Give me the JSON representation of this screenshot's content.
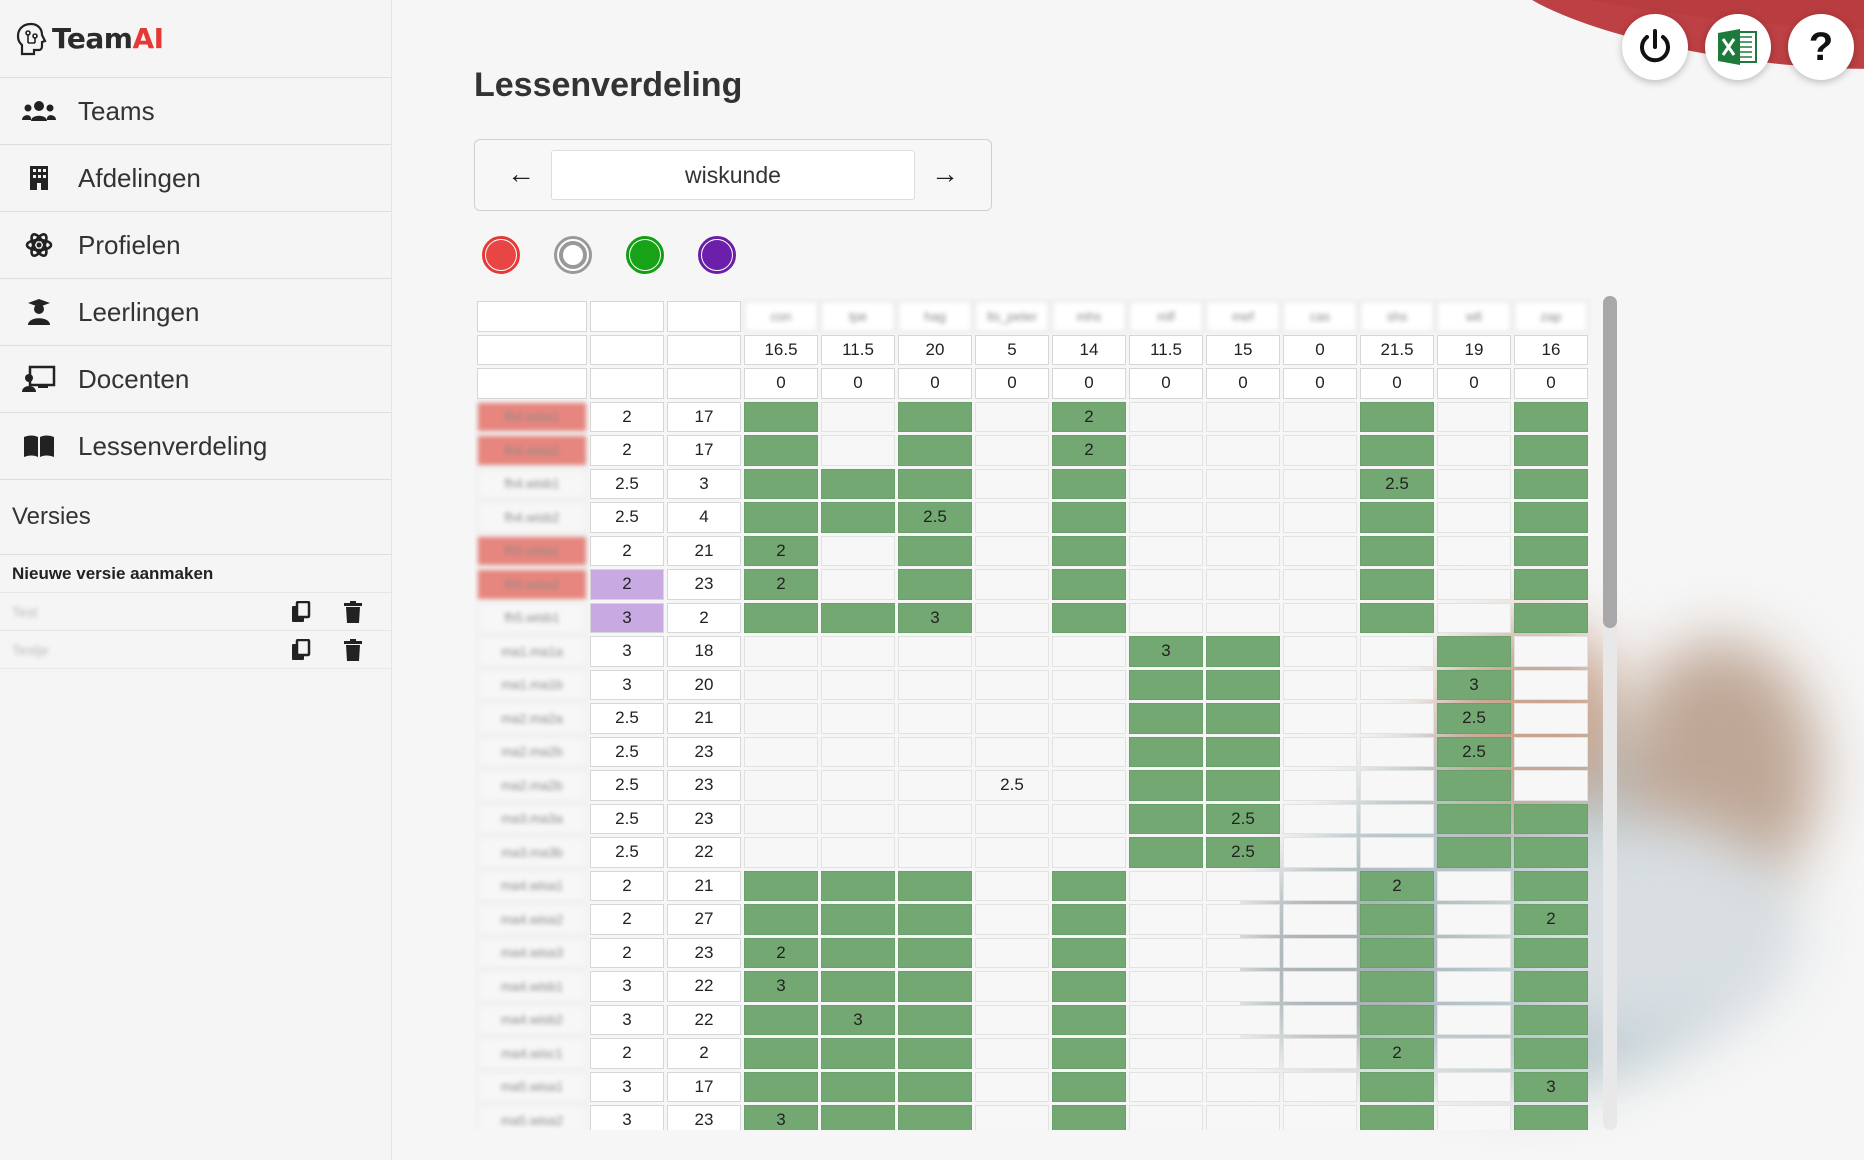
{
  "brand": {
    "name_main": "Team",
    "name_accent": "AI"
  },
  "nav": [
    {
      "label": "Teams",
      "icon": "users-icon"
    },
    {
      "label": "Afdelingen",
      "icon": "building-icon"
    },
    {
      "label": "Profielen",
      "icon": "atom-icon"
    },
    {
      "label": "Leerlingen",
      "icon": "graduate-icon"
    },
    {
      "label": "Docenten",
      "icon": "teacher-icon"
    },
    {
      "label": "Lessenverdeling",
      "icon": "book-icon"
    }
  ],
  "versions": {
    "heading": "Versies",
    "new_label": "Nieuwe versie aanmaken",
    "items": [
      {
        "name": "Test"
      },
      {
        "name": "Testje"
      }
    ]
  },
  "page": {
    "title": "Lessenverdeling"
  },
  "subject_selector": {
    "prev": "←",
    "next": "→",
    "value": "wiskunde"
  },
  "filters": [
    {
      "name": "red",
      "color": "#e53935"
    },
    {
      "name": "gray",
      "color": "#999999"
    },
    {
      "name": "green",
      "color": "#11a011"
    },
    {
      "name": "purple",
      "color": "#6a1ea8"
    }
  ],
  "colors": {
    "green_cell": "#73a873",
    "purple_cell": "#c8a9e2",
    "red_name": "#e7867e",
    "brand_red": "#e53935"
  },
  "grid": {
    "teachers": [
      "con",
      "tpe",
      "hag",
      "lts_peter",
      "mhs",
      "mlf",
      "mef",
      "cas",
      "shs",
      "wtl",
      "zap"
    ],
    "hours": [
      "16.5",
      "11.5",
      "20",
      "5",
      "14",
      "11.5",
      "15",
      "0",
      "21.5",
      "19",
      "16"
    ],
    "remaining": [
      "0",
      "0",
      "0",
      "0",
      "0",
      "0",
      "0",
      "0",
      "0",
      "0",
      "0"
    ],
    "rows": [
      {
        "class": "fh4.wisa1",
        "hours": "2",
        "students": "17",
        "name_color": "red",
        "hours_color": "",
        "cells": [
          "g",
          "",
          "g",
          "",
          "g:2",
          "",
          "",
          "",
          "g",
          "",
          "g"
        ]
      },
      {
        "class": "fh4.wisa2",
        "hours": "2",
        "students": "17",
        "name_color": "red",
        "hours_color": "",
        "cells": [
          "g",
          "",
          "g",
          "",
          "g:2",
          "",
          "",
          "",
          "g",
          "",
          "g"
        ]
      },
      {
        "class": "fh4.wisb1",
        "hours": "2.5",
        "students": "3",
        "name_color": "",
        "hours_color": "",
        "cells": [
          "g",
          "g",
          "g",
          "",
          "g",
          "",
          "",
          "",
          "g:2.5",
          "",
          "g"
        ]
      },
      {
        "class": "fh4.wisb2",
        "hours": "2.5",
        "students": "4",
        "name_color": "",
        "hours_color": "",
        "cells": [
          "g",
          "g",
          "g:2.5",
          "",
          "g",
          "",
          "",
          "",
          "g",
          "",
          "g"
        ]
      },
      {
        "class": "fh5.wisa1",
        "hours": "2",
        "students": "21",
        "name_color": "red",
        "hours_color": "",
        "cells": [
          "g:2",
          "",
          "g",
          "",
          "g",
          "",
          "",
          "",
          "g",
          "",
          "g"
        ]
      },
      {
        "class": "fh5.wisa2",
        "hours": "2",
        "students": "23",
        "name_color": "red",
        "hours_color": "purple",
        "cells": [
          "g:2",
          "",
          "g",
          "",
          "g",
          "",
          "",
          "",
          "g",
          "",
          "g"
        ]
      },
      {
        "class": "fh5.wisb1",
        "hours": "3",
        "students": "2",
        "name_color": "",
        "hours_color": "purple",
        "cells": [
          "g",
          "g",
          "g:3",
          "",
          "g",
          "",
          "",
          "",
          "g",
          "",
          "g"
        ]
      },
      {
        "class": "ma1.ma1a",
        "hours": "3",
        "students": "18",
        "name_color": "",
        "hours_color": "",
        "cells": [
          "",
          "",
          "",
          "",
          "",
          "g:3",
          "g",
          "",
          "",
          "g",
          ""
        ]
      },
      {
        "class": "ma1.ma1b",
        "hours": "3",
        "students": "20",
        "name_color": "",
        "hours_color": "",
        "cells": [
          "",
          "",
          "",
          "",
          "",
          "g",
          "g",
          "",
          "",
          "g:3",
          ""
        ]
      },
      {
        "class": "ma2.ma2a",
        "hours": "2.5",
        "students": "21",
        "name_color": "",
        "hours_color": "",
        "cells": [
          "",
          "",
          "",
          "",
          "",
          "g",
          "g",
          "",
          "",
          "g:2.5",
          ""
        ]
      },
      {
        "class": "ma2.ma2b",
        "hours": "2.5",
        "students": "23",
        "name_color": "",
        "hours_color": "",
        "cells": [
          "",
          "",
          "",
          "",
          "",
          "g",
          "g",
          "",
          "",
          "g:2.5",
          ""
        ]
      },
      {
        "class": "ma2.ma2b",
        "hours": "2.5",
        "students": "23",
        "name_color": "",
        "hours_color": "",
        "cells": [
          "",
          "",
          "",
          "c:2.5",
          "",
          "g",
          "g",
          "",
          "",
          "g",
          ""
        ]
      },
      {
        "class": "ma3.ma3a",
        "hours": "2.5",
        "students": "23",
        "name_color": "",
        "hours_color": "",
        "cells": [
          "",
          "",
          "",
          "",
          "",
          "g",
          "g:2.5",
          "",
          "",
          "g",
          "g"
        ]
      },
      {
        "class": "ma3.ma3b",
        "hours": "2.5",
        "students": "22",
        "name_color": "",
        "hours_color": "",
        "cells": [
          "",
          "",
          "",
          "",
          "",
          "g",
          "g:2.5",
          "",
          "",
          "g",
          "g"
        ]
      },
      {
        "class": "ma4.wisa1",
        "hours": "2",
        "students": "21",
        "name_color": "",
        "hours_color": "",
        "cells": [
          "g",
          "g",
          "g",
          "",
          "g",
          "",
          "",
          "",
          "g:2",
          "",
          "g"
        ]
      },
      {
        "class": "ma4.wisa2",
        "hours": "2",
        "students": "27",
        "name_color": "",
        "hours_color": "",
        "cells": [
          "g",
          "g",
          "g",
          "",
          "g",
          "",
          "",
          "",
          "g",
          "",
          "g:2"
        ]
      },
      {
        "class": "ma4.wisa3",
        "hours": "2",
        "students": "23",
        "name_color": "",
        "hours_color": "",
        "cells": [
          "g:2",
          "g",
          "g",
          "",
          "g",
          "",
          "",
          "",
          "g",
          "",
          "g"
        ]
      },
      {
        "class": "ma4.wisb1",
        "hours": "3",
        "students": "22",
        "name_color": "",
        "hours_color": "",
        "cells": [
          "g:3",
          "g",
          "g",
          "",
          "g",
          "",
          "",
          "",
          "g",
          "",
          "g"
        ]
      },
      {
        "class": "ma4.wisb2",
        "hours": "3",
        "students": "22",
        "name_color": "",
        "hours_color": "",
        "cells": [
          "g",
          "g:3",
          "g",
          "",
          "g",
          "",
          "",
          "",
          "g",
          "",
          "g"
        ]
      },
      {
        "class": "ma4.wisc1",
        "hours": "2",
        "students": "2",
        "name_color": "",
        "hours_color": "",
        "cells": [
          "g",
          "g",
          "g",
          "",
          "g",
          "",
          "",
          "",
          "g:2",
          "",
          "g"
        ]
      },
      {
        "class": "ma5.wisa1",
        "hours": "3",
        "students": "17",
        "name_color": "",
        "hours_color": "",
        "cells": [
          "g",
          "g",
          "g",
          "",
          "g",
          "",
          "",
          "",
          "g",
          "",
          "g:3"
        ]
      },
      {
        "class": "ma5.wisa2",
        "hours": "3",
        "students": "23",
        "name_color": "",
        "hours_color": "",
        "cells": [
          "g:3",
          "g",
          "g",
          "",
          "g",
          "",
          "",
          "",
          "g",
          "",
          "g"
        ]
      }
    ]
  },
  "top_buttons": [
    {
      "name": "power-button",
      "icon": "power-icon"
    },
    {
      "name": "excel-export-button",
      "icon": "excel-icon"
    },
    {
      "name": "help-button",
      "icon": "help-icon",
      "label": "?"
    }
  ]
}
